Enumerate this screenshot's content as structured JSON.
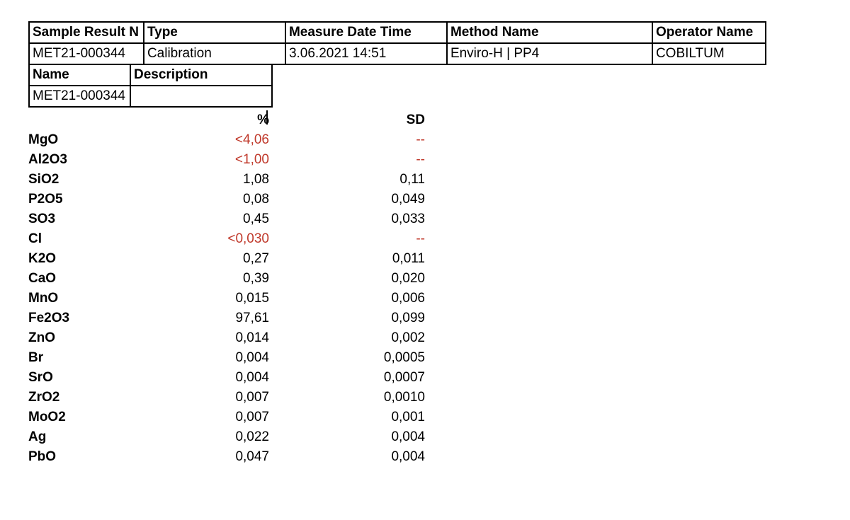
{
  "colors": {
    "text": "#000000",
    "border": "#000000",
    "flag": "#c0392b",
    "background": "#ffffff"
  },
  "meta": {
    "headers": {
      "sample_result": "Sample Result N",
      "type": "Type",
      "measure_date_time": "Measure Date Time",
      "method_name": "Method Name",
      "operator_name": "Operator Name",
      "name": "Name",
      "description": "Description"
    },
    "values": {
      "sample_result": "MET21-000344",
      "type": "Calibration",
      "measure_date_time": "3.06.2021 14:51",
      "method_name": "Enviro-H | PP4",
      "operator_name": "COBILTUM",
      "name": "MET21-000344",
      "description": ""
    }
  },
  "results": {
    "headers": {
      "label": "",
      "percent": "%",
      "sd": "SD"
    },
    "rows": [
      {
        "label": "MgO",
        "percent": "<4,06",
        "sd": "--",
        "flag": true
      },
      {
        "label": "Al2O3",
        "percent": "<1,00",
        "sd": "--",
        "flag": true
      },
      {
        "label": "SiO2",
        "percent": "1,08",
        "sd": "0,11",
        "flag": false
      },
      {
        "label": "P2O5",
        "percent": "0,08",
        "sd": "0,049",
        "flag": false
      },
      {
        "label": "SO3",
        "percent": "0,45",
        "sd": "0,033",
        "flag": false
      },
      {
        "label": "Cl",
        "percent": "<0,030",
        "sd": "--",
        "flag": true
      },
      {
        "label": "K2O",
        "percent": "0,27",
        "sd": "0,011",
        "flag": false
      },
      {
        "label": "CaO",
        "percent": "0,39",
        "sd": "0,020",
        "flag": false
      },
      {
        "label": "MnO",
        "percent": "0,015",
        "sd": "0,006",
        "flag": false
      },
      {
        "label": "Fe2O3",
        "percent": "97,61",
        "sd": "0,099",
        "flag": false
      },
      {
        "label": "ZnO",
        "percent": "0,014",
        "sd": "0,002",
        "flag": false
      },
      {
        "label": "Br",
        "percent": "0,004",
        "sd": "0,0005",
        "flag": false
      },
      {
        "label": "SrO",
        "percent": "0,004",
        "sd": "0,0007",
        "flag": false
      },
      {
        "label": "ZrO2",
        "percent": "0,007",
        "sd": "0,0010",
        "flag": false
      },
      {
        "label": "MoO2",
        "percent": "0,007",
        "sd": "0,001",
        "flag": false
      },
      {
        "label": "Ag",
        "percent": "0,022",
        "sd": "0,004",
        "flag": false
      },
      {
        "label": "PbO",
        "percent": "0,047",
        "sd": "0,004",
        "flag": false
      }
    ]
  }
}
